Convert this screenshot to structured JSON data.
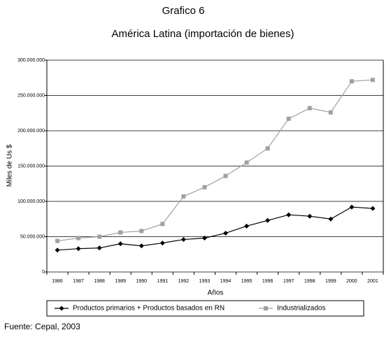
{
  "chart_data": {
    "type": "line",
    "title": "Grafico 6",
    "subtitle": "América Latina (importación de bienes)",
    "y_label": "Miles de Us $",
    "x_label": "Años",
    "source": "Fuente: Cepal, 2003",
    "categories": [
      "1986",
      "1987",
      "1988",
      "1989",
      "1990",
      "1991",
      "1992",
      "1993",
      "1994",
      "1995",
      "1996",
      "1997",
      "1998",
      "1999",
      "2000",
      "2001"
    ],
    "series": [
      {
        "name": "Productos primarios + Productos basados en RN",
        "color": "#000000",
        "marker": "diamond",
        "values": [
          31000000,
          33000000,
          34000000,
          40000000,
          37000000,
          41000000,
          46000000,
          48000000,
          55000000,
          65000000,
          73000000,
          81000000,
          79000000,
          75000000,
          92000000,
          90000000
        ]
      },
      {
        "name": "Industrializados",
        "color": "#a0a0a0",
        "marker": "square",
        "values": [
          44000000,
          48000000,
          50000000,
          56000000,
          58000000,
          68000000,
          107000000,
          120000000,
          136000000,
          155000000,
          175000000,
          217000000,
          232000000,
          226000000,
          270000000,
          272000000
        ]
      }
    ],
    "ylim": [
      0,
      300000000
    ],
    "yticks": [
      0,
      {
        "value": 50000000,
        "label": "50.000.000"
      },
      {
        "value": 100000000,
        "label": "100.000.000"
      },
      {
        "value": 150000000,
        "label": "150.000.000"
      },
      {
        "value": 200000000,
        "label": "200.000.000"
      },
      {
        "value": 250000000,
        "label": "250.000.000"
      },
      {
        "value": 300000000,
        "label": "300.000.000"
      }
    ],
    "grid": true,
    "legend": "bottom"
  }
}
